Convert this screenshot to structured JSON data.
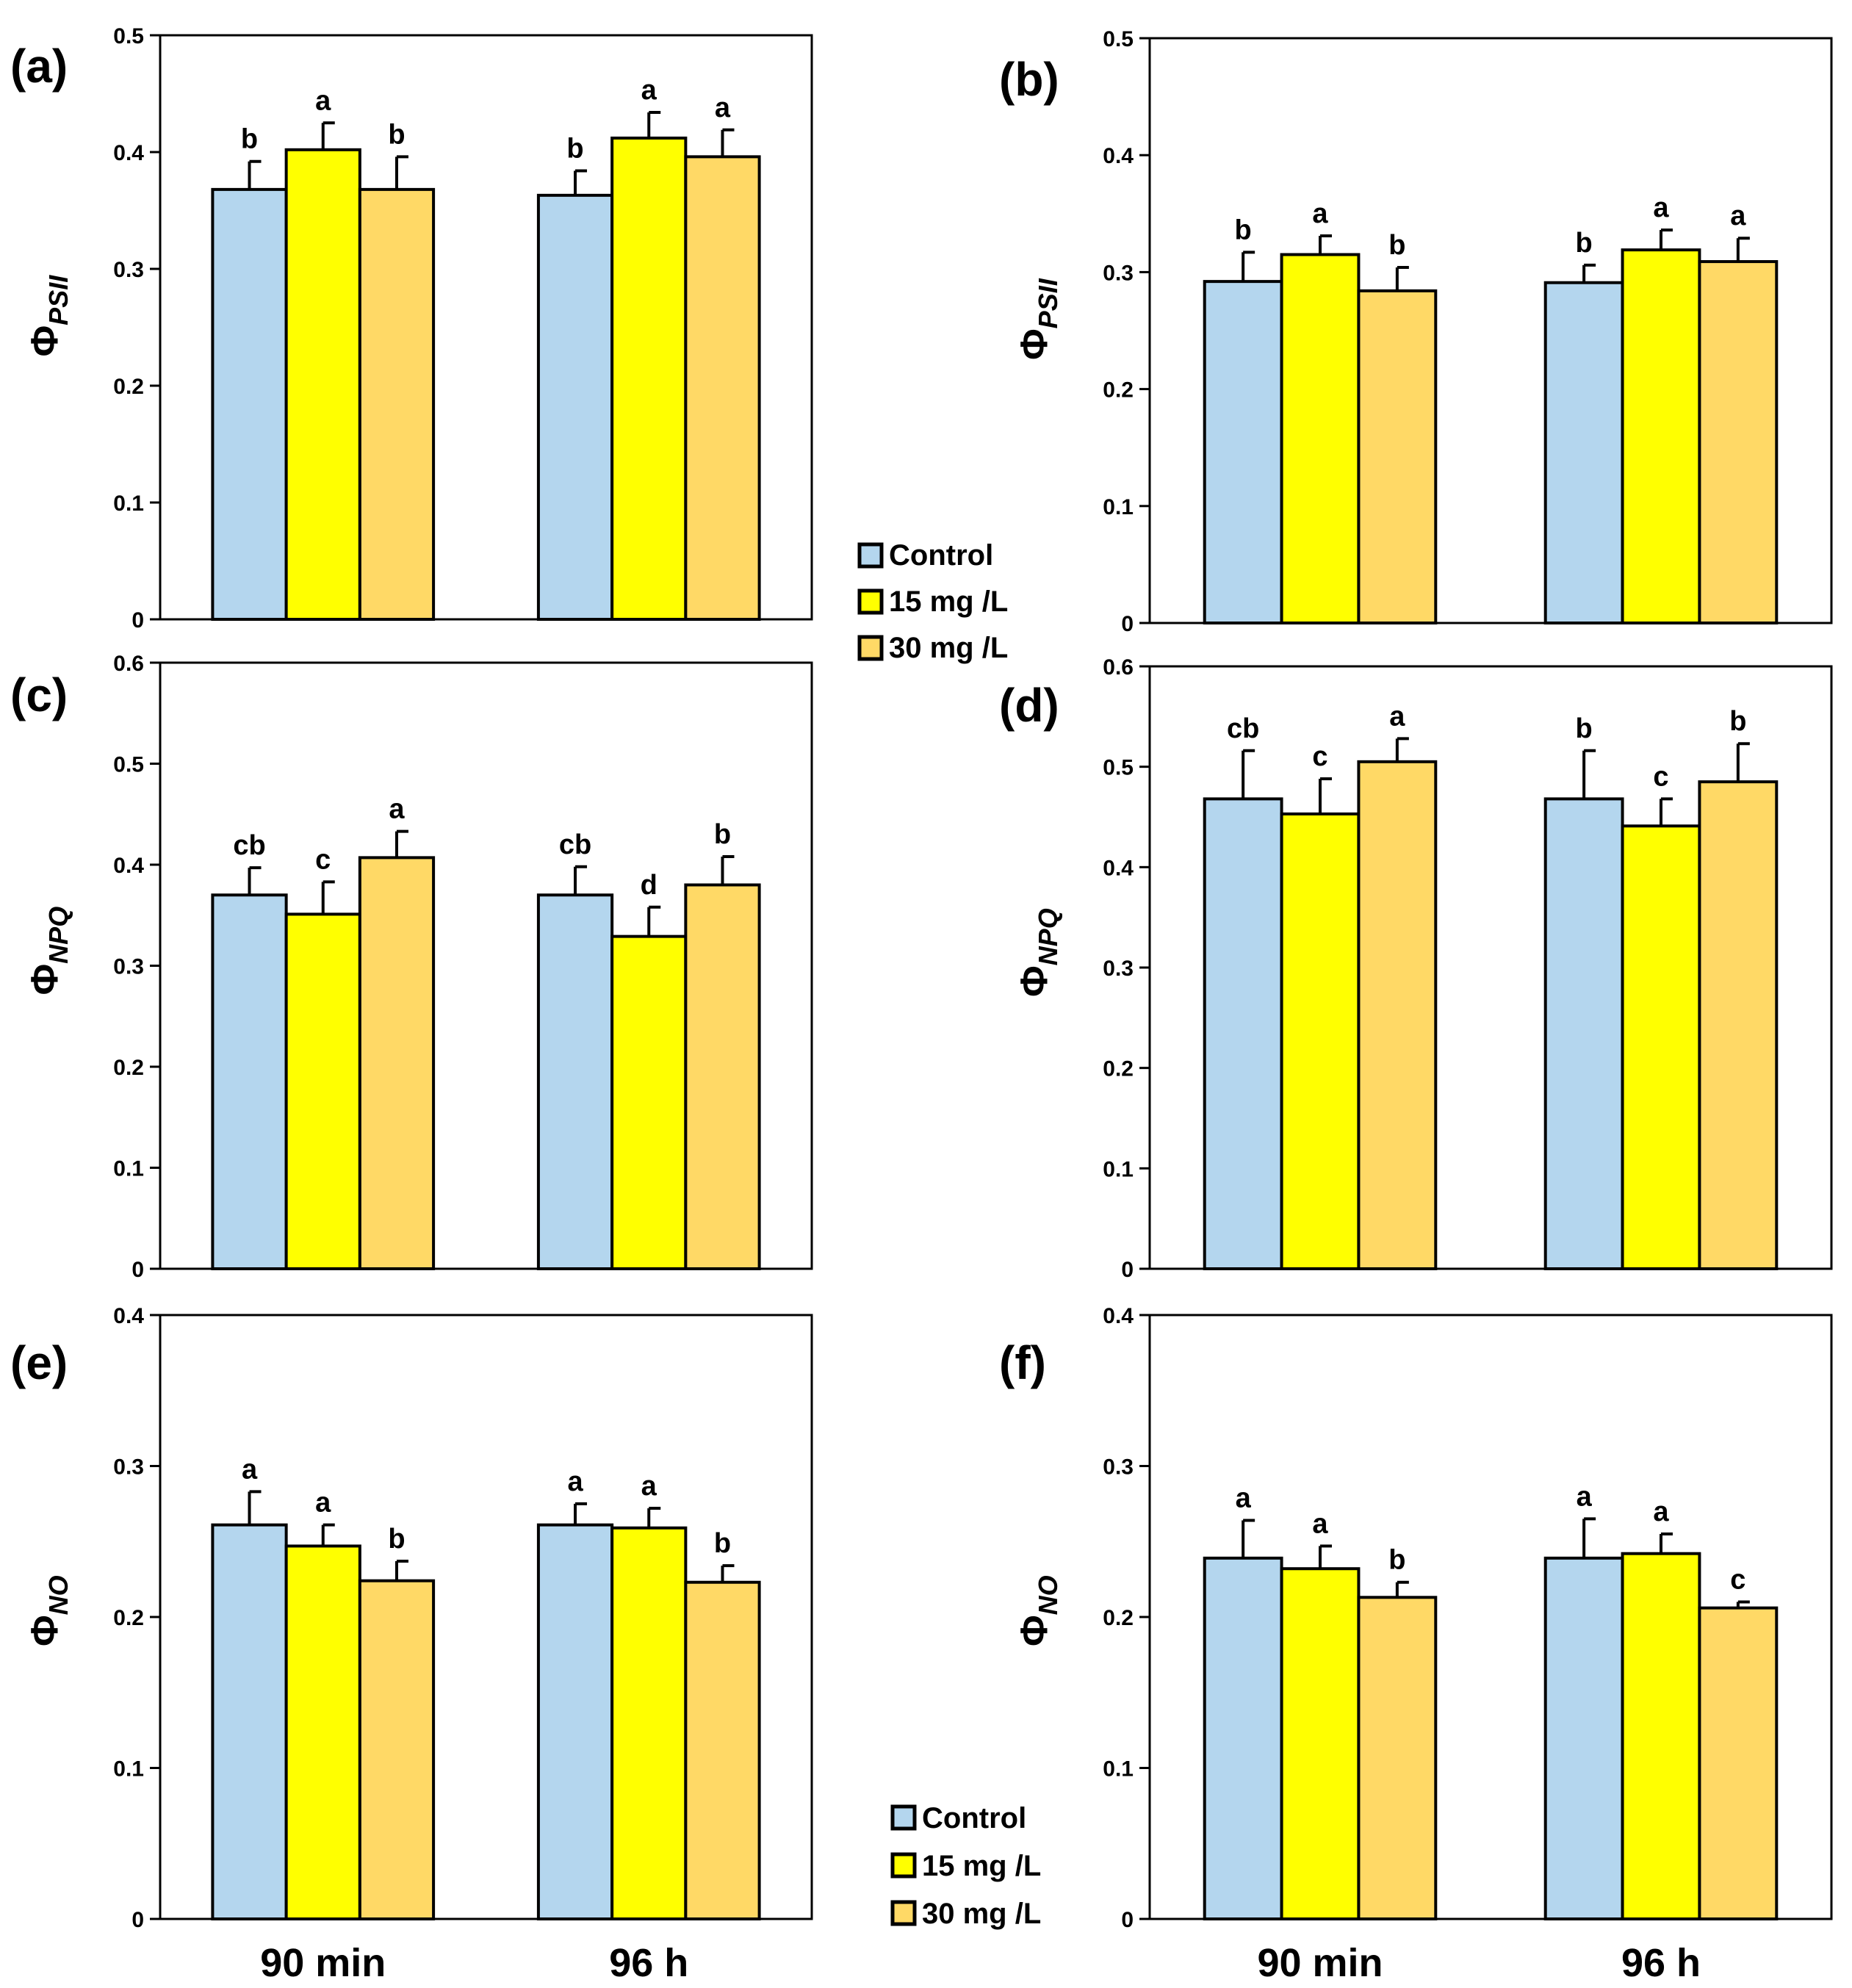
{
  "chart_data": [
    {
      "panel": "(a)",
      "type": "bar",
      "ylabel_symbol": "Φ",
      "ylabel_subscript": "PSII",
      "ylim": [
        0,
        0.5
      ],
      "yticks": [
        "0",
        "0.1",
        "0.2",
        "0.3",
        "0.4",
        "0.5"
      ],
      "categories": [
        "90 min",
        "96 h"
      ],
      "show_category_labels": false,
      "series": [
        {
          "name": "Control",
          "values": [
            0.368,
            0.363
          ],
          "errors": [
            0.024,
            0.021
          ],
          "letters": [
            "b",
            "b"
          ]
        },
        {
          "name": "15 mg /L",
          "values": [
            0.402,
            0.412
          ],
          "errors": [
            0.023,
            0.022
          ],
          "letters": [
            "a",
            "a"
          ]
        },
        {
          "name": "30 mg /L",
          "values": [
            0.368,
            0.396
          ],
          "errors": [
            0.028,
            0.023
          ],
          "letters": [
            "b",
            "a"
          ]
        }
      ]
    },
    {
      "panel": "(b)",
      "type": "bar",
      "ylabel_symbol": "Φ",
      "ylabel_subscript": "PSII",
      "ylim": [
        0,
        0.5
      ],
      "yticks": [
        "0",
        "0.1",
        "0.2",
        "0.3",
        "0.4",
        "0.5"
      ],
      "categories": [
        "90 min",
        "96 h"
      ],
      "show_category_labels": false,
      "series": [
        {
          "name": "Control",
          "values": [
            0.292,
            0.291
          ],
          "errors": [
            0.025,
            0.015
          ],
          "letters": [
            "b",
            "b"
          ]
        },
        {
          "name": "15 mg /L",
          "values": [
            0.315,
            0.319
          ],
          "errors": [
            0.016,
            0.017
          ],
          "letters": [
            "a",
            "a"
          ]
        },
        {
          "name": "30 mg /L",
          "values": [
            0.284,
            0.309
          ],
          "errors": [
            0.02,
            0.02
          ],
          "letters": [
            "b",
            "a"
          ]
        }
      ]
    },
    {
      "panel": "(c)",
      "type": "bar",
      "ylabel_symbol": "Φ",
      "ylabel_subscript": "NPQ",
      "ylim": [
        0,
        0.6
      ],
      "yticks": [
        "0",
        "0.1",
        "0.2",
        "0.3",
        "0.4",
        "0.5",
        "0.6"
      ],
      "categories": [
        "90 min",
        "96 h"
      ],
      "show_category_labels": false,
      "series": [
        {
          "name": "Control",
          "values": [
            0.37,
            0.37
          ],
          "errors": [
            0.027,
            0.028
          ],
          "letters": [
            "cb",
            "cb"
          ]
        },
        {
          "name": "15 mg /L",
          "values": [
            0.351,
            0.329
          ],
          "errors": [
            0.032,
            0.029
          ],
          "letters": [
            "c",
            "d"
          ]
        },
        {
          "name": "30 mg /L",
          "values": [
            0.407,
            0.38
          ],
          "errors": [
            0.026,
            0.028
          ],
          "letters": [
            "a",
            "b"
          ]
        }
      ]
    },
    {
      "panel": "(d)",
      "type": "bar",
      "ylabel_symbol": "Φ",
      "ylabel_subscript": "NPQ",
      "ylim": [
        0,
        0.6
      ],
      "yticks": [
        "0",
        "0.1",
        "0.2",
        "0.3",
        "0.4",
        "0.5",
        "0.6"
      ],
      "categories": [
        "90 min",
        "96 h"
      ],
      "show_category_labels": false,
      "series": [
        {
          "name": "Control",
          "values": [
            0.468,
            0.468
          ],
          "errors": [
            0.048,
            0.048
          ],
          "letters": [
            "cb",
            "b"
          ]
        },
        {
          "name": "15 mg /L",
          "values": [
            0.453,
            0.441
          ],
          "errors": [
            0.035,
            0.027
          ],
          "letters": [
            "c",
            "c"
          ]
        },
        {
          "name": "30 mg /L",
          "values": [
            0.505,
            0.485
          ],
          "errors": [
            0.023,
            0.038
          ],
          "letters": [
            "a",
            "b"
          ]
        }
      ]
    },
    {
      "panel": "(e)",
      "type": "bar",
      "ylabel_symbol": "Φ",
      "ylabel_subscript": "NO",
      "ylim": [
        0,
        0.4
      ],
      "yticks": [
        "0",
        "0.1",
        "0.2",
        "0.3",
        "0.4"
      ],
      "categories": [
        "90 min",
        "96 h"
      ],
      "show_category_labels": true,
      "series": [
        {
          "name": "Control",
          "values": [
            0.261,
            0.261
          ],
          "errors": [
            0.022,
            0.014
          ],
          "letters": [
            "a",
            "a"
          ]
        },
        {
          "name": "15 mg /L",
          "values": [
            0.247,
            0.259
          ],
          "errors": [
            0.014,
            0.013
          ],
          "letters": [
            "a",
            "a"
          ]
        },
        {
          "name": "30 mg /L",
          "values": [
            0.224,
            0.223
          ],
          "errors": [
            0.013,
            0.011
          ],
          "letters": [
            "b",
            "b"
          ]
        }
      ]
    },
    {
      "panel": "(f)",
      "type": "bar",
      "ylabel_symbol": "Φ",
      "ylabel_subscript": "NO",
      "ylim": [
        0,
        0.4
      ],
      "yticks": [
        "0",
        "0.1",
        "0.2",
        "0.3",
        "0.4"
      ],
      "categories": [
        "90 min",
        "96 h"
      ],
      "show_category_labels": true,
      "series": [
        {
          "name": "Control",
          "values": [
            0.239,
            0.239
          ],
          "errors": [
            0.025,
            0.026
          ],
          "letters": [
            "a",
            "a"
          ]
        },
        {
          "name": "15 mg /L",
          "values": [
            0.232,
            0.242
          ],
          "errors": [
            0.015,
            0.013
          ],
          "letters": [
            "a",
            "a"
          ]
        },
        {
          "name": "30 mg /L",
          "values": [
            0.213,
            0.206
          ],
          "errors": [
            0.01,
            0.004
          ],
          "letters": [
            "b",
            "c"
          ]
        }
      ]
    }
  ],
  "legend": {
    "entries": [
      "Control",
      "15 mg /L",
      "30 mg /L"
    ]
  },
  "colors": {
    "Control": "#b4d6ee",
    "15 mg /L": "#ffff00",
    "30 mg /L": "#ffd966",
    "axis": "#000000"
  }
}
